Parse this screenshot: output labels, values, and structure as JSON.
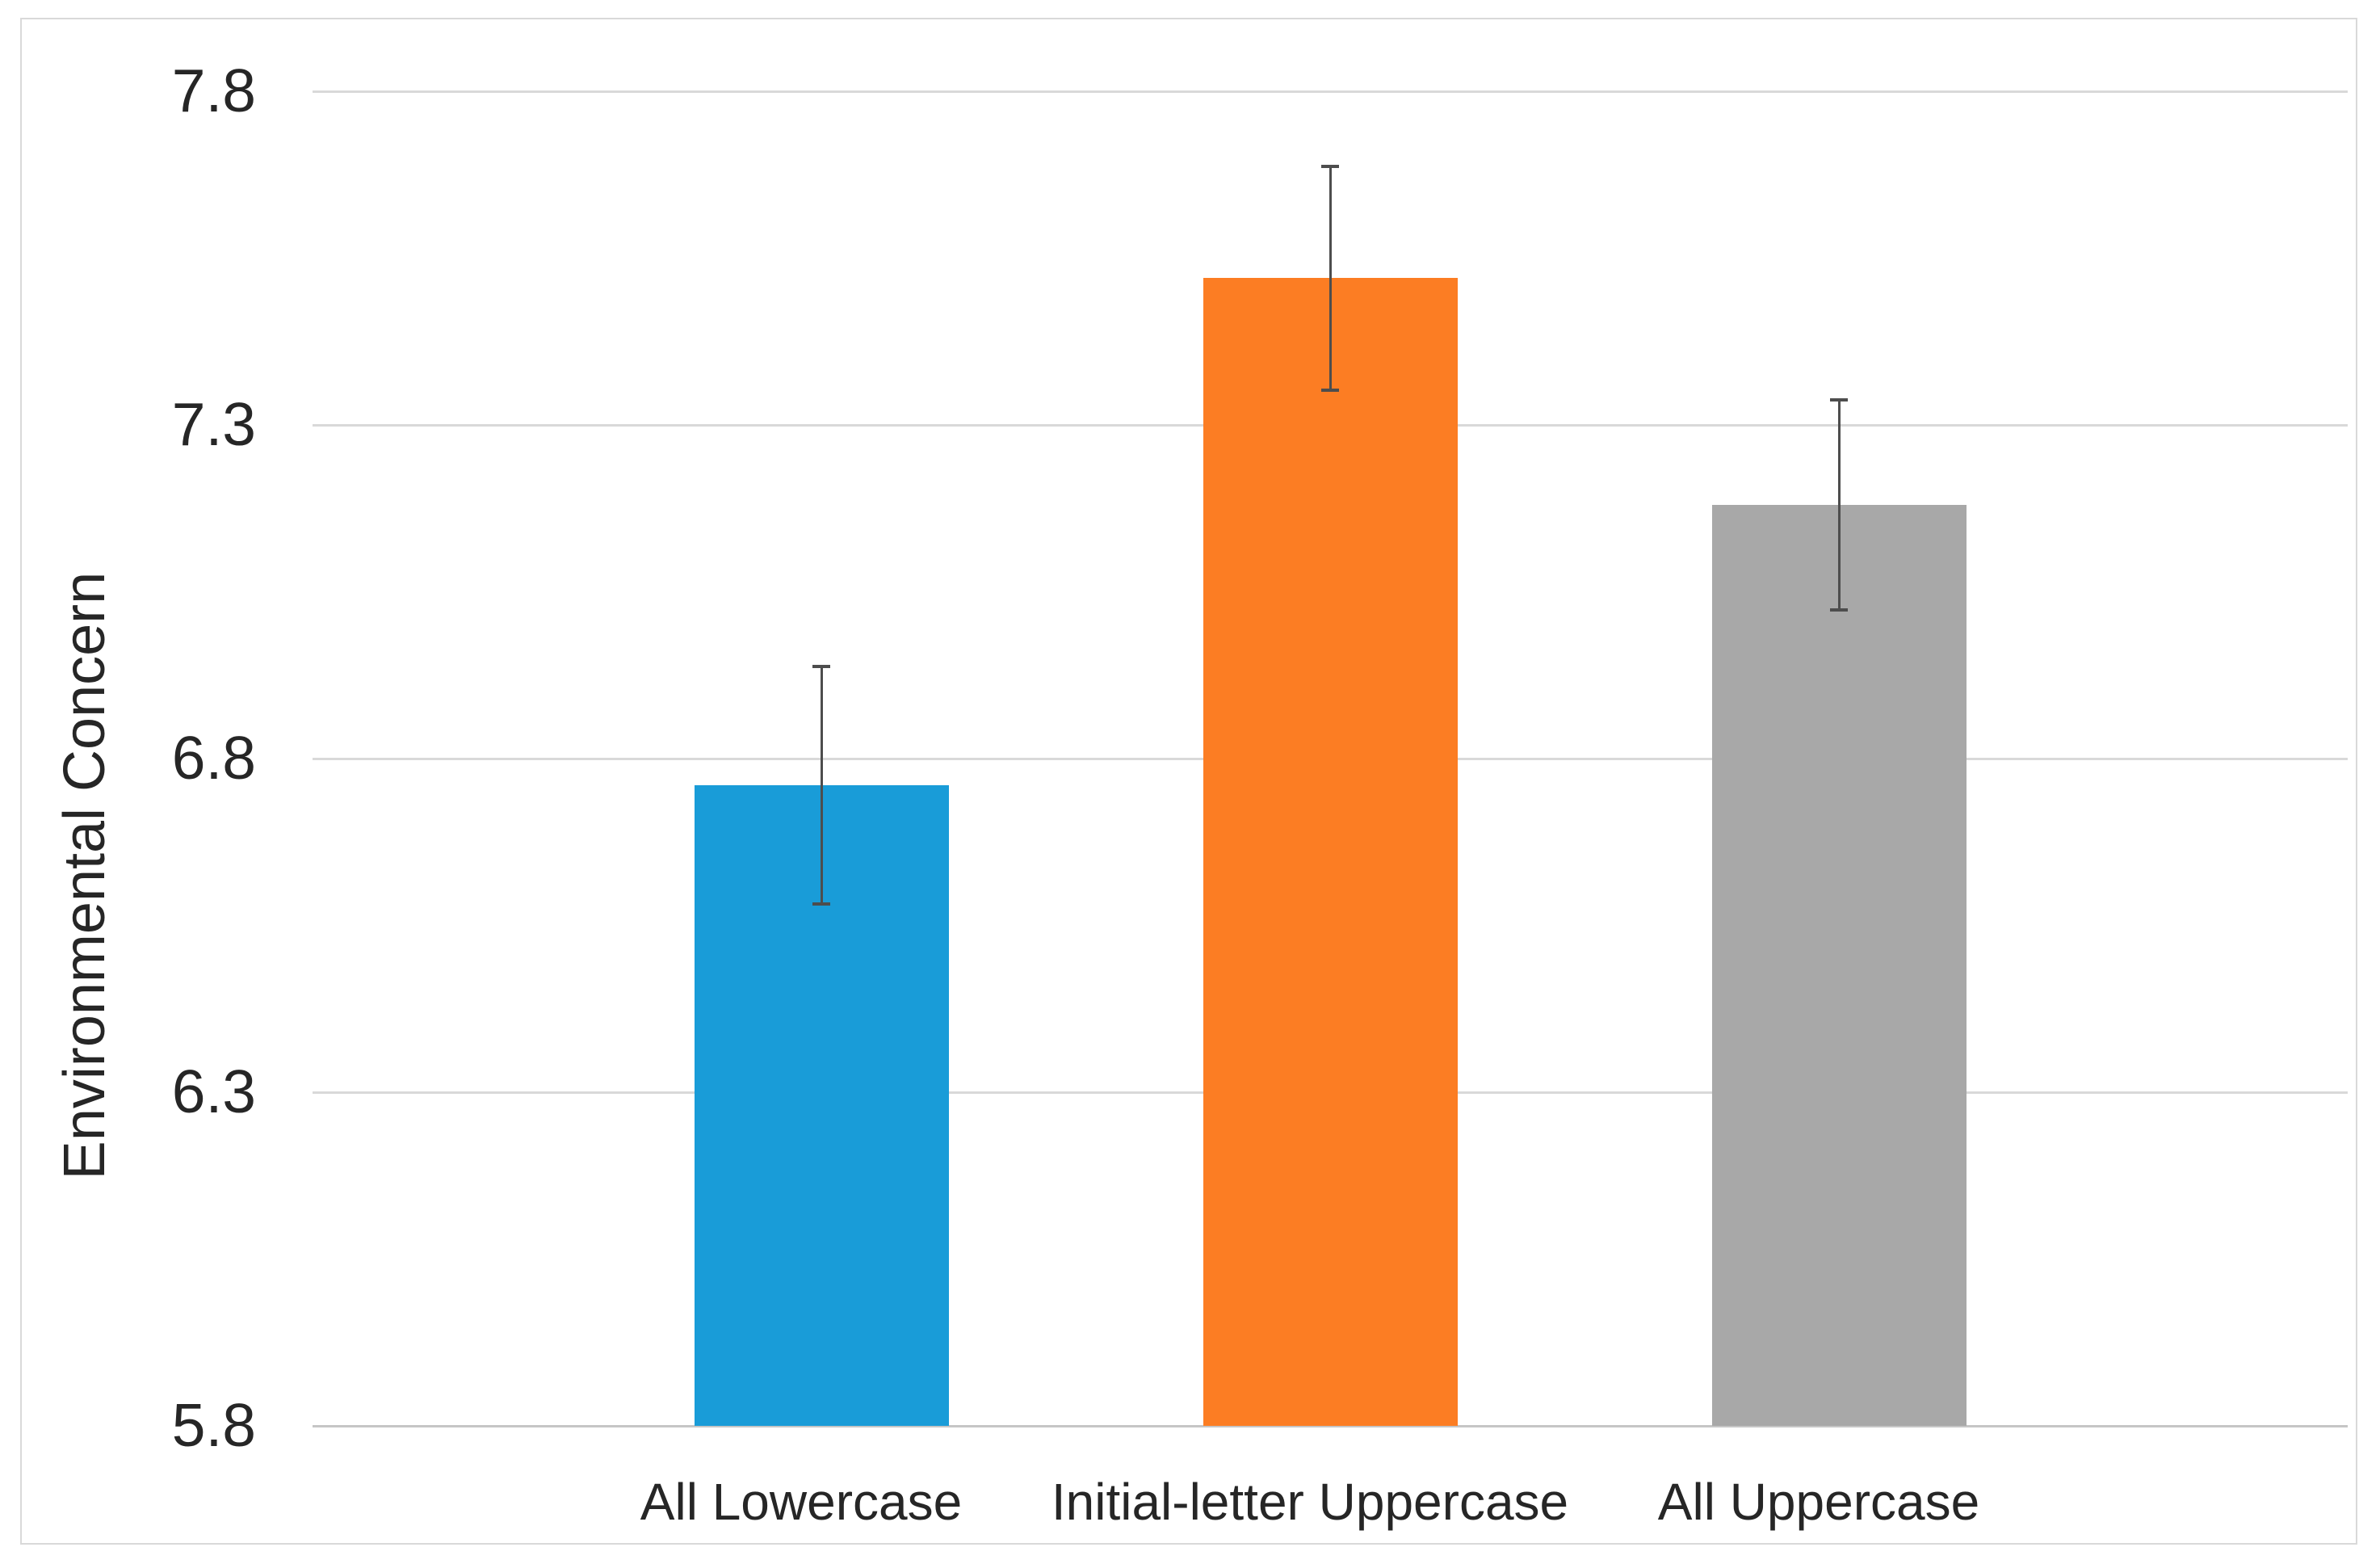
{
  "chart_data": {
    "type": "bar",
    "title": "",
    "xlabel": "",
    "ylabel": "Environmental Concern",
    "categories": [
      "All Lowercase",
      "Initial-letter Uppercase",
      "All Uppercase"
    ],
    "series": [
      {
        "name": "Environmental Concern",
        "values": [
          6.76,
          7.52,
          7.18
        ]
      }
    ],
    "error_bars": {
      "upper": [
        6.94,
        7.69,
        7.34
      ],
      "lower": [
        6.58,
        7.35,
        7.02
      ]
    },
    "bar_colors": [
      "#199cd8",
      "#fc7d23",
      "#a8a8a8"
    ],
    "ylim": [
      5.8,
      7.8
    ],
    "yticks": [
      5.8,
      6.3,
      6.8,
      7.3,
      7.8
    ],
    "ytick_format_decimals": 1,
    "grid": true,
    "legend_position": "none",
    "colors": {
      "gridline": "#d9d9d9",
      "axis_line": "#c6c6c6",
      "error_bar": "#4d4d4d",
      "text": "#262626",
      "chart_border": "#d9d9d9",
      "background": "#ffffff"
    }
  }
}
